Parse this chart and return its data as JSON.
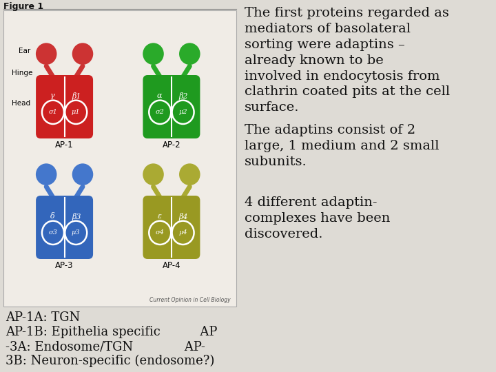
{
  "title": "Figure 1",
  "right_text_paragraphs": [
    "The first proteins regarded as\nmediators of basolateral\nsorting were adaptins –\nalready known to be\ninvolved in endocytosis from\nclathrin coated pits at the cell\nsurface.",
    "The adaptins consist of 2\nlarge, 1 medium and 2 small\nsubunits.",
    "4 different adaptin-\ncomplexes have been\ndiscovered."
  ],
  "bottom_text_lines": [
    "AP-1A: TGN",
    "AP-1B: Epithelia specific          AP",
    "-3A: Endosome/TGN             AP-",
    "3B: Neuron-specific (endosome?)"
  ],
  "bg_color": "#dedbd5",
  "figure_bg": "#e8e4de",
  "ap1_color": "#cc2020",
  "ap2_color": "#1f9a1f",
  "ap3_color": "#3366bb",
  "ap4_color": "#999922",
  "text_color": "#111111",
  "font_size_main": 14,
  "font_size_bottom": 13,
  "font_size_title": 9,
  "source_text": "Current Opinion in Cell Biology"
}
